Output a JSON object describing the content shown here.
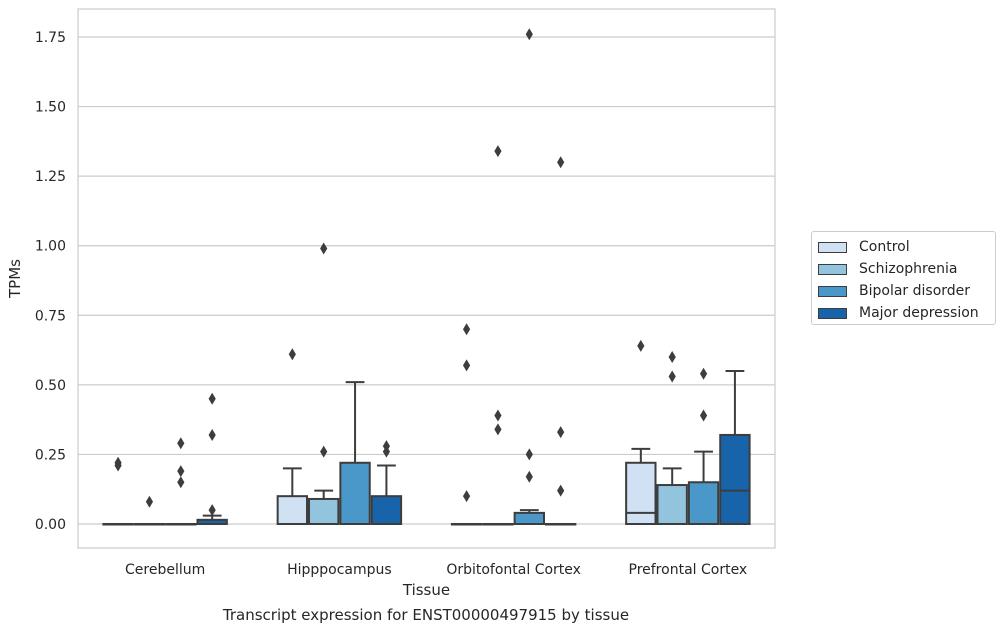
{
  "chart_data": {
    "type": "box",
    "caption": "Transcript expression for ENST00000497915 by tissue",
    "xlabel": "Tissue",
    "ylabel": "TPMs",
    "ylim": [
      -0.085,
      1.85
    ],
    "yticks": [
      "0.00",
      "0.25",
      "0.50",
      "0.75",
      "1.00",
      "1.25",
      "1.50",
      "1.75"
    ],
    "grid": "horizontal",
    "legend_position": "right",
    "categories": [
      "Cerebellum",
      "Hipppocampus",
      "Orbitofontal Cortex",
      "Prefrontal Cortex"
    ],
    "series": [
      {
        "name": "Control",
        "color": "#cfe1f2",
        "boxes": [
          {
            "q1": 0,
            "median": 0,
            "q3": 0,
            "whisker_low": 0,
            "whisker_high": 0,
            "outliers": [
              0.22,
              0.21
            ]
          },
          {
            "q1": 0,
            "median": 0,
            "q3": 0.1,
            "whisker_low": 0,
            "whisker_high": 0.2,
            "outliers": [
              0.61
            ]
          },
          {
            "q1": 0,
            "median": 0,
            "q3": 0,
            "whisker_low": 0,
            "whisker_high": 0,
            "outliers": [
              0.7,
              0.57,
              0.1
            ]
          },
          {
            "q1": 0,
            "median": 0.04,
            "q3": 0.22,
            "whisker_low": 0,
            "whisker_high": 0.27,
            "outliers": [
              0.64
            ]
          }
        ]
      },
      {
        "name": "Schizophrenia",
        "color": "#93c4de",
        "boxes": [
          {
            "q1": 0,
            "median": 0,
            "q3": 0,
            "whisker_low": 0,
            "whisker_high": 0,
            "outliers": [
              0.08
            ]
          },
          {
            "q1": 0,
            "median": 0,
            "q3": 0.09,
            "whisker_low": 0,
            "whisker_high": 0.12,
            "outliers": [
              0.26,
              0.99
            ]
          },
          {
            "q1": 0,
            "median": 0,
            "q3": 0,
            "whisker_low": 0,
            "whisker_high": 0,
            "outliers": [
              1.34,
              0.39,
              0.34
            ]
          },
          {
            "q1": 0,
            "median": 0,
            "q3": 0.14,
            "whisker_low": 0,
            "whisker_high": 0.2,
            "outliers": [
              0.6,
              0.53
            ]
          }
        ]
      },
      {
        "name": "Bipolar disorder",
        "color": "#4a98c9",
        "boxes": [
          {
            "q1": 0,
            "median": 0,
            "q3": 0,
            "whisker_low": 0,
            "whisker_high": 0,
            "outliers": [
              0.29,
              0.19,
              0.15
            ]
          },
          {
            "q1": 0,
            "median": 0,
            "q3": 0.22,
            "whisker_low": 0,
            "whisker_high": 0.51,
            "outliers": []
          },
          {
            "q1": 0,
            "median": 0,
            "q3": 0.04,
            "whisker_low": 0,
            "whisker_high": 0.05,
            "outliers": [
              1.76,
              0.25,
              0.17
            ]
          },
          {
            "q1": 0,
            "median": 0,
            "q3": 0.15,
            "whisker_low": 0,
            "whisker_high": 0.26,
            "outliers": [
              0.54,
              0.39
            ]
          }
        ]
      },
      {
        "name": "Major depression",
        "color": "#1764ab",
        "boxes": [
          {
            "q1": 0,
            "median": 0,
            "q3": 0.015,
            "whisker_low": 0,
            "whisker_high": 0.03,
            "outliers": [
              0.45,
              0.32,
              0.05
            ]
          },
          {
            "q1": 0,
            "median": 0,
            "q3": 0.1,
            "whisker_low": 0,
            "whisker_high": 0.21,
            "outliers": [
              0.28,
              0.26
            ]
          },
          {
            "q1": 0,
            "median": 0,
            "q3": 0,
            "whisker_low": 0,
            "whisker_high": 0,
            "outliers": [
              1.3,
              0.33,
              0.12
            ]
          },
          {
            "q1": 0,
            "median": 0.12,
            "q3": 0.32,
            "whisker_low": 0,
            "whisker_high": 0.55,
            "outliers": []
          }
        ]
      }
    ]
  }
}
